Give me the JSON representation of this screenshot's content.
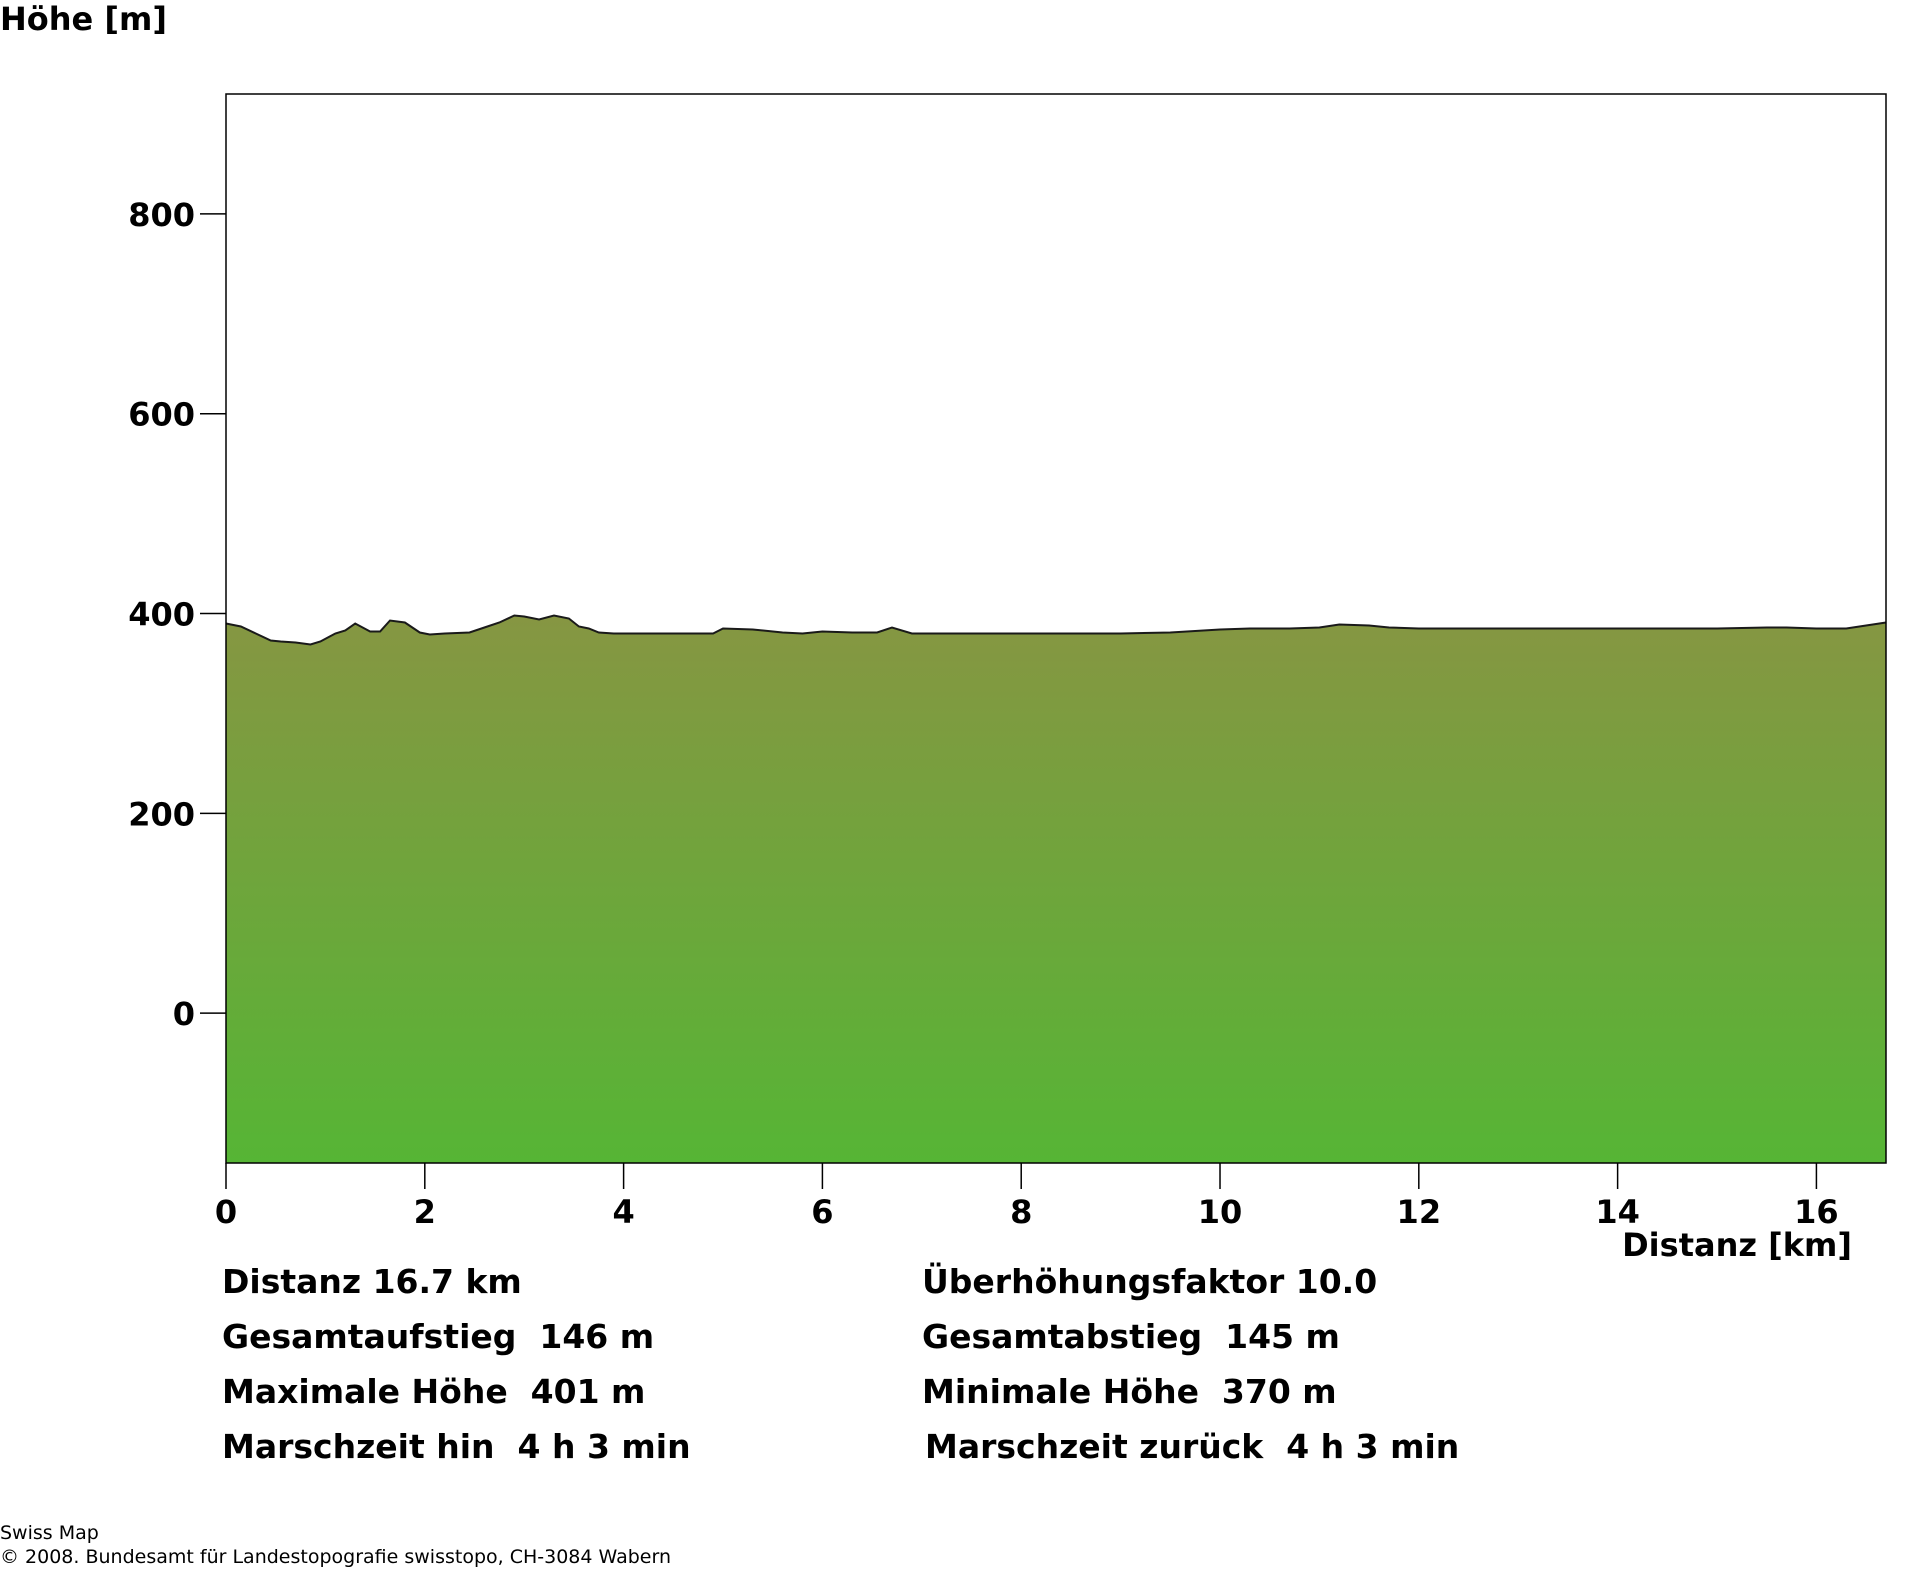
{
  "chart_data": {
    "type": "area",
    "ylabel": "Höhe [m]",
    "xlabel": "Distanz [km]",
    "xlim": [
      0,
      16.7
    ],
    "ylim": [
      -150,
      920
    ],
    "x_ticks": [
      0,
      2,
      4,
      6,
      8,
      10,
      12,
      14,
      16
    ],
    "x_tick_labels": [
      "0",
      "2",
      "4",
      "6",
      "8",
      "10",
      "12",
      "14",
      "16"
    ],
    "y_ticks": [
      0,
      200,
      400,
      600,
      800
    ],
    "y_tick_labels": [
      "0",
      "200",
      "400",
      "600",
      "800"
    ],
    "grid": false,
    "colors": {
      "fill_top": "#869642",
      "fill_bottom": "#56b535",
      "line": "#1a1a1a"
    },
    "series": [
      {
        "x": [
          0,
          0.15,
          0.3,
          0.45,
          0.55,
          0.7,
          0.85,
          0.95,
          1.1,
          1.2,
          1.3,
          1.45,
          1.55,
          1.65,
          1.8,
          1.95,
          2.05,
          2.2,
          2.45,
          2.6,
          2.75,
          2.9,
          3.0,
          3.15,
          3.3,
          3.45,
          3.55,
          3.65,
          3.75,
          3.9,
          4.1,
          4.5,
          4.9,
          5.0,
          5.3,
          5.6,
          5.8,
          6.0,
          6.3,
          6.55,
          6.7,
          6.9,
          7.2,
          7.6,
          8.0,
          8.5,
          9.0,
          9.5,
          10.0,
          10.3,
          10.7,
          11.0,
          11.2,
          11.5,
          11.7,
          12.0,
          13.0,
          14.0,
          15.0,
          15.5,
          15.7,
          16.0,
          16.3,
          16.5,
          16.7
        ],
        "y": [
          390,
          387,
          380,
          373,
          372,
          371,
          369,
          372,
          380,
          383,
          390,
          382,
          382,
          393,
          391,
          381,
          379,
          380,
          381,
          386,
          391,
          398,
          397,
          394,
          398,
          395,
          387,
          385,
          381,
          380,
          380,
          380,
          380,
          385,
          384,
          381,
          380,
          382,
          381,
          381,
          386,
          380,
          380,
          380,
          380,
          380,
          380,
          381,
          384,
          385,
          385,
          386,
          389,
          388,
          386,
          385,
          385,
          385,
          385,
          386,
          386,
          385,
          385,
          388,
          391
        ]
      }
    ]
  },
  "stats": {
    "distanz": "Distanz 16.7 km",
    "ueberhoehung": "Überhöhungsfaktor 10.0",
    "aufstieg": "Gesamtaufstieg  146 m",
    "abstieg": "Gesamtabstieg  145 m",
    "max_hoehe": "Maximale Höhe  401 m",
    "min_hoehe": "Minimale Höhe  370 m",
    "zeit_hin": "Marschzeit hin  4 h 3 min",
    "zeit_zurueck": "Marschzeit zurück  4 h 3 min"
  },
  "footer": {
    "source": "Swiss Map",
    "copyright": "© 2008. Bundesamt für Landestopografie swisstopo, CH-3084 Wabern"
  }
}
